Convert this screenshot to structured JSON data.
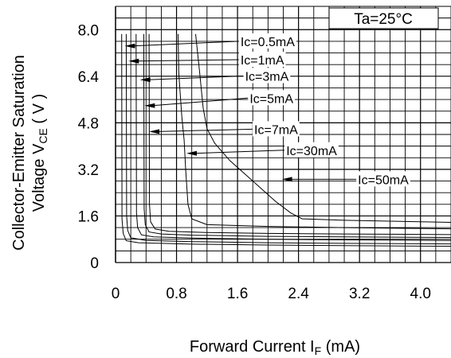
{
  "chart_data": {
    "type": "line",
    "annotation": "Ta=25°C",
    "ylabel_line1": "Collector-Emitter Saturation",
    "ylabel_line2_main": "Voltage V",
    "ylabel_line2_sub": "CE",
    "ylabel_line2_unit": " ( V )",
    "xlabel_main": "Forward Current I",
    "xlabel_sub": "F",
    "xlabel_unit": " (mA)",
    "xlim": [
      0,
      4.4
    ],
    "ylim": [
      0,
      8.8
    ],
    "grid": true,
    "x_ticks": [
      {
        "value": 0,
        "label": "0"
      },
      {
        "value": 0.8,
        "label": "0.8"
      },
      {
        "value": 1.6,
        "label": "1.6"
      },
      {
        "value": 2.4,
        "label": "2.4"
      },
      {
        "value": 3.2,
        "label": "3.2"
      },
      {
        "value": 4.0,
        "label": "4.0"
      }
    ],
    "y_ticks": [
      {
        "value": 0,
        "label": "0"
      },
      {
        "value": 1.6,
        "label": "1.6"
      },
      {
        "value": 3.2,
        "label": "3.2"
      },
      {
        "value": 4.8,
        "label": "4.8"
      },
      {
        "value": 6.4,
        "label": "6.4"
      },
      {
        "value": 8.0,
        "label": "8.0"
      }
    ],
    "series": [
      {
        "name": "Ic=0.5mA",
        "label_at": [
          1.66,
          7.6
        ],
        "arrow_to": [
          0.12,
          7.44
        ],
        "x": [
          0.08,
          0.085,
          0.1,
          0.14,
          0.3,
          1.0,
          2.0,
          3.0,
          4.4
        ],
        "y": [
          7.85,
          1.5,
          1.0,
          0.75,
          0.68,
          0.63,
          0.6,
          0.58,
          0.56
        ]
      },
      {
        "name": "Ic=1mA",
        "label_at": [
          1.66,
          6.97
        ],
        "arrow_to": [
          0.17,
          6.92
        ],
        "x": [
          0.14,
          0.145,
          0.16,
          0.2,
          0.4,
          1.0,
          2.0,
          3.0,
          4.4
        ],
        "y": [
          7.85,
          1.6,
          1.1,
          0.85,
          0.76,
          0.72,
          0.68,
          0.66,
          0.64
        ]
      },
      {
        "name": "Ic=3mA",
        "label_at": [
          1.72,
          6.41
        ],
        "arrow_to": [
          0.32,
          6.28
        ],
        "x": [
          0.27,
          0.275,
          0.29,
          0.34,
          0.5,
          1.0,
          2.0,
          3.0,
          4.4
        ],
        "y": [
          7.85,
          1.7,
          1.2,
          0.95,
          0.88,
          0.84,
          0.8,
          0.78,
          0.76
        ]
      },
      {
        "name": "Ic=5mA",
        "label_at": [
          1.78,
          5.65
        ],
        "arrow_to": [
          0.38,
          5.39
        ],
        "x": [
          0.37,
          0.375,
          0.39,
          0.44,
          0.6,
          1.0,
          2.0,
          3.0,
          4.4
        ],
        "y": [
          7.85,
          1.85,
          1.3,
          1.05,
          0.98,
          0.94,
          0.9,
          0.88,
          0.86
        ]
      },
      {
        "name": "Ic=7mA",
        "label_at": [
          1.84,
          4.58
        ],
        "arrow_to": [
          0.44,
          4.5
        ],
        "x": [
          0.44,
          0.445,
          0.46,
          0.52,
          0.7,
          1.2,
          2.0,
          3.0,
          4.4
        ],
        "y": [
          7.85,
          2.0,
          1.4,
          1.15,
          1.07,
          1.03,
          1.0,
          0.98,
          0.96
        ]
      },
      {
        "name": "Ic=30mA",
        "label_at": [
          2.26,
          3.86
        ],
        "arrow_to": [
          0.93,
          3.75
        ],
        "x": [
          0.82,
          0.83,
          0.87,
          0.9,
          0.92,
          0.95,
          1.0,
          1.2,
          2.0,
          3.0,
          4.4
        ],
        "y": [
          7.85,
          6.5,
          5.0,
          4.2,
          3.2,
          2.0,
          1.5,
          1.3,
          1.24,
          1.2,
          1.16
        ]
      },
      {
        "name": "Ic=50mA",
        "label_at": [
          3.2,
          2.86
        ],
        "arrow_to": [
          2.18,
          2.86
        ],
        "x": [
          1.05,
          1.1,
          1.15,
          1.2,
          1.3,
          1.5,
          1.8,
          2.1,
          2.3,
          2.45,
          3.0,
          4.4
        ],
        "y": [
          7.85,
          6.6,
          5.3,
          4.6,
          4.1,
          3.5,
          2.8,
          2.1,
          1.7,
          1.5,
          1.45,
          1.38
        ]
      }
    ]
  }
}
